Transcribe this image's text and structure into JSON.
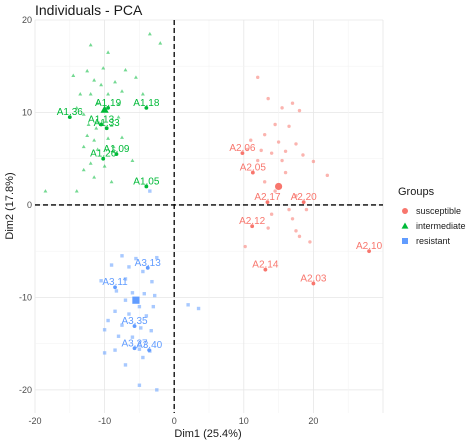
{
  "chart_data": {
    "type": "scatter",
    "title": "Individuals - PCA",
    "xlabel": "Dim1 (25.4%)",
    "ylabel": "Dim2 (17.8%)",
    "xlim": [
      -20,
      30
    ],
    "ylim": [
      -22.5,
      20
    ],
    "x_ticks": [
      -20,
      -10,
      0,
      10,
      20
    ],
    "y_ticks": [
      -20,
      -10,
      0,
      10,
      20
    ],
    "grid": true,
    "legend": {
      "title": "Groups",
      "position": "right"
    },
    "colors": {
      "susceptible": "#f8766d",
      "intermediate": "#00ba38",
      "resistant": "#619cff"
    },
    "series": [
      {
        "name": "susceptible",
        "marker": "circle",
        "centroid": [
          15,
          2
        ],
        "labeled": [
          {
            "label": "A2.06",
            "x": 9.8,
            "y": 5.6
          },
          {
            "label": "A2.05",
            "x": 11.3,
            "y": 3.5
          },
          {
            "label": "A2.17",
            "x": 13.4,
            "y": 0.3
          },
          {
            "label": "A2.20",
            "x": 18.6,
            "y": 0.3
          },
          {
            "label": "A2.12",
            "x": 11.2,
            "y": -2.3
          },
          {
            "label": "A2.14",
            "x": 13.1,
            "y": -7.0
          },
          {
            "label": "A2.03",
            "x": 20.0,
            "y": -8.5
          },
          {
            "label": "A2.10",
            "x": 28.0,
            "y": -5.0
          }
        ],
        "points": [
          [
            12,
            13.8
          ],
          [
            13.5,
            11.5
          ],
          [
            15.5,
            10.5
          ],
          [
            17,
            11
          ],
          [
            18,
            10.2
          ],
          [
            14.5,
            8.7
          ],
          [
            16.5,
            8.5
          ],
          [
            13,
            7.6
          ],
          [
            11,
            7
          ],
          [
            15,
            6.8
          ],
          [
            17.5,
            6.6
          ],
          [
            10.5,
            6
          ],
          [
            12.5,
            5.9
          ],
          [
            14,
            5.6
          ],
          [
            16,
            5.8
          ],
          [
            18.5,
            5.4
          ],
          [
            12,
            4.8
          ],
          [
            15.5,
            4.8
          ],
          [
            20,
            4.7
          ],
          [
            16,
            3.5
          ],
          [
            22,
            3.2
          ],
          [
            13,
            2.5
          ],
          [
            14.5,
            1.5
          ],
          [
            17.5,
            1
          ],
          [
            16.5,
            -0.5
          ],
          [
            19,
            -0.5
          ],
          [
            14,
            -1
          ],
          [
            17,
            -1.5
          ],
          [
            13.5,
            -2.5
          ],
          [
            17.5,
            -2.8
          ],
          [
            18,
            -3.4
          ],
          [
            10.2,
            -4.5
          ],
          [
            19.5,
            -4
          ]
        ]
      },
      {
        "name": "intermediate",
        "marker": "triangle",
        "centroid": [
          -10,
          10.3
        ],
        "labeled": [
          {
            "label": "A1.36",
            "x": -15,
            "y": 9.5
          },
          {
            "label": "A1.19",
            "x": -9.5,
            "y": 10.5
          },
          {
            "label": "A1.18",
            "x": -4.0,
            "y": 10.5
          },
          {
            "label": "A1.13",
            "x": -10.5,
            "y": 8.7
          },
          {
            "label": "A1.33",
            "x": -9.7,
            "y": 8.3
          },
          {
            "label": "A1.09",
            "x": -8.3,
            "y": 5.5
          },
          {
            "label": "A1.26",
            "x": -10.2,
            "y": 5.0
          },
          {
            "label": "A1.05",
            "x": -4.0,
            "y": 2.0
          }
        ],
        "points": [
          [
            -12,
            17.3
          ],
          [
            -9.5,
            16.5
          ],
          [
            -3.5,
            18.5
          ],
          [
            -2,
            17.5
          ],
          [
            -14.5,
            14
          ],
          [
            -12.5,
            14.5
          ],
          [
            -10.2,
            14.8
          ],
          [
            -7,
            14.6
          ],
          [
            -11.5,
            13.5
          ],
          [
            -10.5,
            13
          ],
          [
            -8.5,
            13.3
          ],
          [
            -5.5,
            13.8
          ],
          [
            -13.5,
            12
          ],
          [
            -12,
            12
          ],
          [
            -9.5,
            12
          ],
          [
            -7.5,
            12.3
          ],
          [
            -4.5,
            12
          ],
          [
            -11,
            11
          ],
          [
            -8,
            10.9
          ],
          [
            -14,
            10.5
          ],
          [
            -13,
            9.8
          ],
          [
            -12.3,
            8.7
          ],
          [
            -11.2,
            8.3
          ],
          [
            -9,
            8.6
          ],
          [
            -8,
            9.5
          ],
          [
            -12.5,
            7.5
          ],
          [
            -11.5,
            7
          ],
          [
            -9.5,
            7.2
          ],
          [
            -7.5,
            7.3
          ],
          [
            -13,
            6.3
          ],
          [
            -11,
            6
          ],
          [
            -8.7,
            6.3
          ],
          [
            -12,
            4.5
          ],
          [
            -10,
            4.2
          ],
          [
            -6,
            4.8
          ],
          [
            -13,
            3.8
          ],
          [
            -11.5,
            3
          ],
          [
            -9,
            2.5
          ],
          [
            -18.5,
            1.5
          ],
          [
            -14,
            1.5
          ]
        ]
      },
      {
        "name": "resistant",
        "marker": "square",
        "centroid": [
          -5.5,
          -10.3
        ],
        "labeled": [
          {
            "label": "A3.13",
            "x": -3.8,
            "y": -6.8
          },
          {
            "label": "A3.11",
            "x": -8.5,
            "y": -8.9
          },
          {
            "label": "A3.35",
            "x": -5.7,
            "y": -13.1
          },
          {
            "label": "A3.27",
            "x": -5.7,
            "y": -15.5
          },
          {
            "label": "A3.40",
            "x": -3.6,
            "y": -15.7
          }
        ],
        "points": [
          [
            -3.5,
            1.5
          ],
          [
            -7.5,
            -5.5
          ],
          [
            -5.5,
            -5.8
          ],
          [
            -2.5,
            -5.7
          ],
          [
            -9,
            -6.5
          ],
          [
            -6.5,
            -6.7
          ],
          [
            -4.5,
            -7.2
          ],
          [
            -10.5,
            -8.2
          ],
          [
            -7,
            -8
          ],
          [
            -3.2,
            -8.3
          ],
          [
            -8.3,
            -9.3
          ],
          [
            -6,
            -9.5
          ],
          [
            -4.3,
            -9.6
          ],
          [
            -2.8,
            -9.8
          ],
          [
            -7,
            -10.3
          ],
          [
            -5,
            -11
          ],
          [
            -3,
            -11
          ],
          [
            -8.5,
            -11.5
          ],
          [
            -6.5,
            -11.8
          ],
          [
            -4,
            -12
          ],
          [
            -9.5,
            -12.5
          ],
          [
            -7.5,
            -13
          ],
          [
            -4.8,
            -13.3
          ],
          [
            -3.3,
            -13.6
          ],
          [
            -10,
            -13.5
          ],
          [
            -8,
            -14.2
          ],
          [
            -6,
            -14.3
          ],
          [
            -5,
            -15.6
          ],
          [
            -3.5,
            -15.8
          ],
          [
            -8.5,
            -15.7
          ],
          [
            -4.5,
            -16.5
          ],
          [
            -10,
            -16
          ],
          [
            -7,
            -17.3
          ],
          [
            -5,
            -19.5
          ],
          [
            -2.5,
            -20
          ],
          [
            2,
            -10.8
          ],
          [
            3.5,
            -11.2
          ]
        ]
      }
    ]
  }
}
